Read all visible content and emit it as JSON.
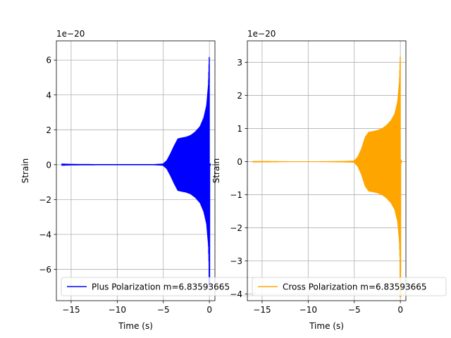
{
  "chart_data": [
    {
      "type": "line",
      "xlabel": "Time (s)",
      "ylabel": "Strain",
      "offset_text": "1e−20",
      "xlim": [
        -16.6,
        0.6
      ],
      "ylim": [
        -7.8,
        7.1
      ],
      "x_ticks": [
        -15,
        -10,
        -5,
        0
      ],
      "x_tick_labels": [
        "−15",
        "−10",
        "−5",
        "0"
      ],
      "y_ticks": [
        -6,
        -4,
        -2,
        0,
        2,
        4,
        6
      ],
      "y_tick_labels": [
        "−6",
        "−4",
        "−2",
        "0",
        "2",
        "4",
        "6"
      ],
      "grid": true,
      "legend_position": "lower-left",
      "series": [
        {
          "name": "Plus Polarization m=6.83593665",
          "color": "#0000ff",
          "x_start": -16.0,
          "x_end": 0.1,
          "envelope_x": [
            -16.0,
            -15.0,
            -12.0,
            -9.0,
            -6.0,
            -5.0,
            -4.6,
            -4.2,
            -3.8,
            -3.4,
            -3.0,
            -2.5,
            -2.0,
            -1.5,
            -1.0,
            -0.6,
            -0.3,
            -0.1,
            0.0
          ],
          "envelope_amplitude": [
            0.06,
            0.04,
            0.03,
            0.03,
            0.03,
            0.06,
            0.25,
            0.65,
            1.1,
            1.5,
            1.55,
            1.6,
            1.7,
            1.9,
            2.2,
            2.7,
            3.4,
            4.6,
            6.45
          ],
          "min_value": -7.0
        }
      ]
    },
    {
      "type": "line",
      "xlabel": "Time (s)",
      "ylabel": "Strain",
      "offset_text": "1e−20",
      "xlim": [
        -16.6,
        0.6
      ],
      "ylim": [
        -4.2,
        3.65
      ],
      "x_ticks": [
        -15,
        -10,
        -5,
        0
      ],
      "x_tick_labels": [
        "−15",
        "−10",
        "−5",
        "0"
      ],
      "y_ticks": [
        -4,
        -3,
        -2,
        -1,
        0,
        1,
        2,
        3
      ],
      "y_tick_labels": [
        "−4",
        "−3",
        "−2",
        "−1",
        "0",
        "1",
        "2",
        "3"
      ],
      "grid": true,
      "legend_position": "lower-left",
      "series": [
        {
          "name": "Cross Polarization m=6.83593665",
          "color": "#ffa500",
          "x_start": -16.0,
          "x_end": 0.1,
          "envelope_x": [
            -16.0,
            -15.0,
            -12.0,
            -9.0,
            -6.0,
            -5.0,
            -4.6,
            -4.2,
            -3.8,
            -3.4,
            -3.0,
            -2.5,
            -2.0,
            -1.5,
            -1.0,
            -0.6,
            -0.3,
            -0.1,
            0.0
          ],
          "envelope_amplitude": [
            0.02,
            0.02,
            0.01,
            0.01,
            0.02,
            0.03,
            0.15,
            0.4,
            0.75,
            0.9,
            0.92,
            0.95,
            1.0,
            1.1,
            1.25,
            1.45,
            1.8,
            2.4,
            3.3
          ],
          "min_value": -4.1
        }
      ]
    }
  ]
}
